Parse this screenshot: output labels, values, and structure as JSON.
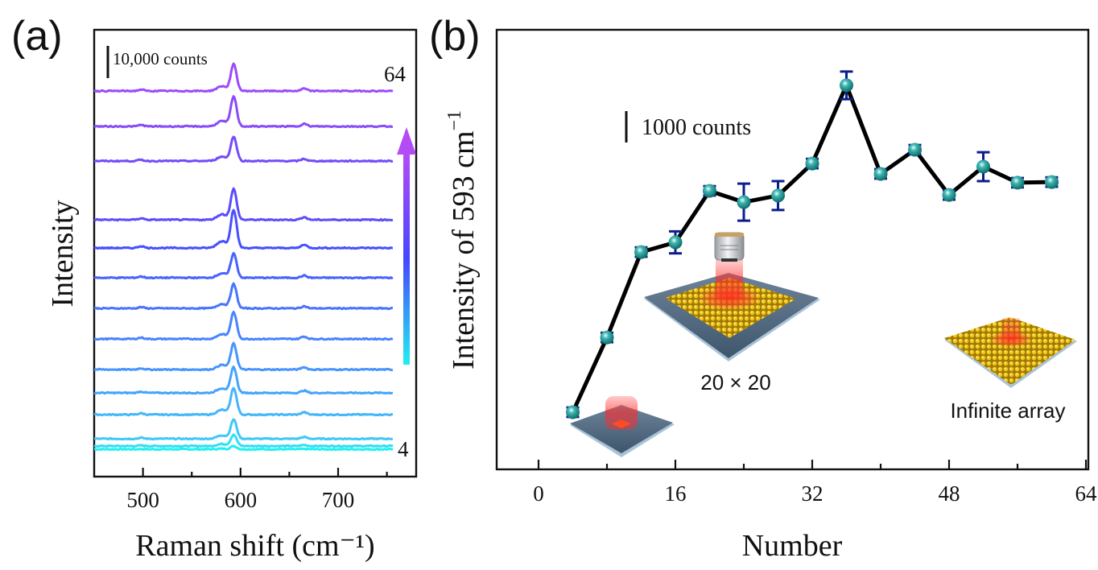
{
  "chart_data": [
    {
      "panel": "(a)",
      "type": "line",
      "title": "",
      "xlabel": "Raman shift (cm⁻¹)",
      "ylabel": "Intensity",
      "xlim": [
        450,
        780
      ],
      "xticks": [
        500,
        600,
        700
      ],
      "xtick_labels": [
        "500",
        "600",
        "700"
      ],
      "minor_xticks": [
        550,
        650,
        750
      ],
      "y_ticks_shown": false,
      "scale_bar": {
        "label": "10,000 counts",
        "value": 10000
      },
      "stack_offset_note": "spectra vertically offset for clarity",
      "peak_main_cm": 593,
      "peak_minor_cm": [
        498,
        665
      ],
      "series_label_bottom": "4",
      "series_label_top": "64",
      "color_arrow": {
        "direction": "up",
        "from_color": "#22eef0",
        "mid_color": "#4646ff",
        "to_color": "#b44cf6"
      },
      "spectra": [
        {
          "name": "spectrum-1",
          "peak_height_counts": 1000,
          "color": "#22f0f0"
        },
        {
          "name": "spectrum-2",
          "peak_height_counts": 3500,
          "color": "#2ee0f4"
        },
        {
          "name": "spectrum-3",
          "peak_height_counts": 6000,
          "color": "#3ec8f8"
        },
        {
          "name": "spectrum-4",
          "peak_height_counts": 8250,
          "color": "#44b6fa"
        },
        {
          "name": "spectrum-5",
          "peak_height_counts": 8000,
          "color": "#44a4fb"
        },
        {
          "name": "spectrum-6",
          "peak_height_counts": 8000,
          "color": "#4794fc"
        },
        {
          "name": "spectrum-7",
          "peak_height_counts": 8250,
          "color": "#4884fd"
        },
        {
          "name": "spectrum-8",
          "peak_height_counts": 7500,
          "color": "#4874fe"
        },
        {
          "name": "spectrum-9",
          "peak_height_counts": 7500,
          "color": "#4762ff"
        },
        {
          "name": "spectrum-10",
          "peak_height_counts": 11750,
          "color": "#4650ff"
        },
        {
          "name": "spectrum-11",
          "peak_height_counts": 9500,
          "color": "#5a4cfb"
        },
        {
          "name": "spectrum-12",
          "peak_height_counts": 7500,
          "color": "#744cf9"
        },
        {
          "name": "spectrum-13",
          "peak_height_counts": 9250,
          "color": "#884cf8"
        },
        {
          "name": "spectrum-14",
          "peak_height_counts": 8250,
          "color": "#9b4cf7"
        }
      ],
      "baseline_offsets_counts": [
        0,
        1000,
        3250,
        10750,
        17500,
        24750,
        34250,
        43750,
        53250,
        62500,
        71250,
        89500,
        100250,
        111250
      ]
    },
    {
      "panel": "(b)",
      "type": "line",
      "title": "",
      "xlabel": "Number",
      "ylabel": "Intensity of 593 cm⁻¹",
      "xlim": [
        -5,
        64.5
      ],
      "xticks": [
        0,
        16,
        32,
        48,
        64
      ],
      "xtick_labels": [
        "0",
        "16",
        "32",
        "48",
        "64"
      ],
      "minor_xticks": [
        8,
        24,
        40,
        56
      ],
      "ylim": [
        0,
        14000
      ],
      "y_ticks_shown": false,
      "y_units": "relative counts",
      "scale_bar": {
        "label": "1000 counts",
        "value": 1000
      },
      "marker_color": "#1a8f8f",
      "errorbar_color": "#0b1d8e",
      "line_color": "#000000",
      "x": [
        4,
        8,
        12,
        16,
        20,
        24,
        28,
        32,
        36,
        40,
        44,
        48,
        52,
        56,
        60
      ],
      "y": [
        1820,
        4200,
        6920,
        7230,
        8870,
        8510,
        8720,
        9740,
        12230,
        9410,
        10180,
        8740,
        9640,
        9130,
        9150
      ],
      "yerr": [
        150,
        150,
        150,
        350,
        150,
        590,
        460,
        150,
        440,
        150,
        150,
        150,
        460,
        150,
        150
      ],
      "annotations": [
        {
          "name": "small-array-inset",
          "text": "",
          "near_x": 10
        },
        {
          "name": "20x20-array-inset",
          "text": "20 × 20",
          "near_x": 22
        },
        {
          "name": "infinite-array-inset",
          "text": "Infinite array",
          "near_x": 57
        }
      ]
    }
  ]
}
